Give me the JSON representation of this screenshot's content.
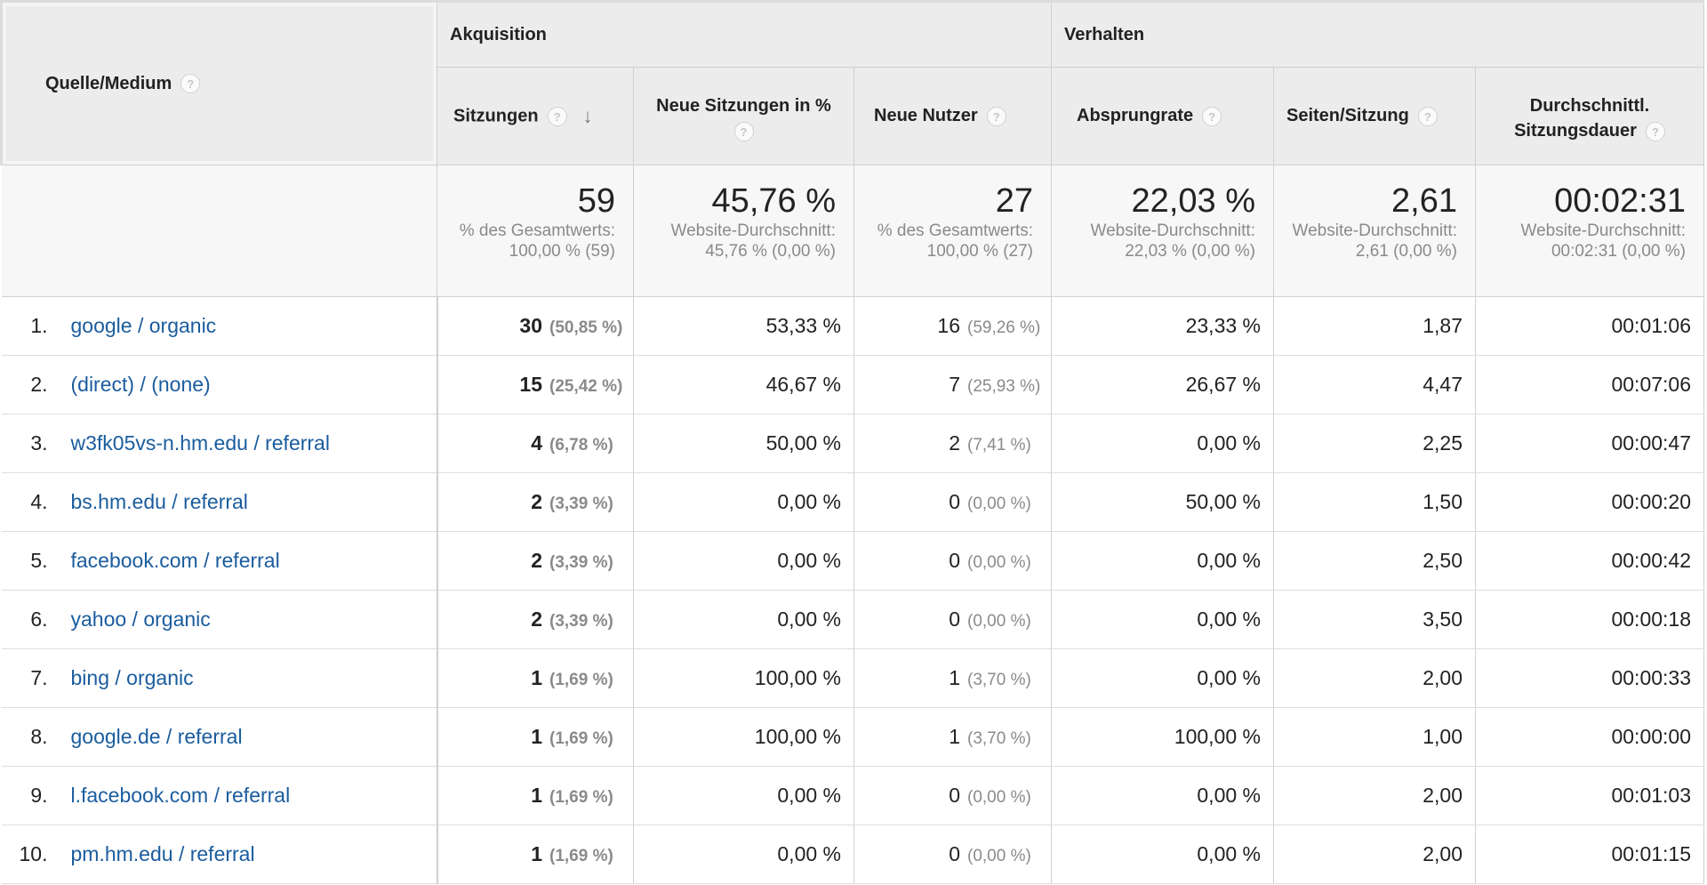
{
  "header": {
    "source_label": "Quelle/Medium",
    "group_acquisition": "Akquisition",
    "group_behavior": "Verhalten",
    "columns": {
      "sessions": "Sitzungen",
      "new_sessions_pct": "Neue Sitzungen in %",
      "new_users": "Neue Nutzer",
      "bounce_rate": "Absprungrate",
      "pages_per_session": "Seiten/Sitzung",
      "avg_duration_line1": "Durchschnittl.",
      "avg_duration_line2": "Sitzungsdauer"
    },
    "help_glyph": "?",
    "sort_glyph": "↓"
  },
  "totals": {
    "sessions": {
      "value": "59",
      "sub": "% des Gesamtwerts: 100,00 % (59)"
    },
    "new_sessions_pct": {
      "value": "45,76 %",
      "sub": "Website-Durchschnitt: 45,76 % (0,00 %)"
    },
    "new_users": {
      "value": "27",
      "sub": "% des Gesamtwerts: 100,00 % (27)"
    },
    "bounce_rate": {
      "value": "22,03 %",
      "sub": "Website-Durchschnitt: 22,03 % (0,00 %)"
    },
    "pages_per_session": {
      "value": "2,61",
      "sub": "Website-Durchschnitt: 2,61 (0,00 %)"
    },
    "avg_duration": {
      "value": "00:02:31",
      "sub": "Website-Durchschnitt: 00:02:31 (0,00 %)"
    }
  },
  "rows": [
    {
      "idx": "1.",
      "source": "google / organic",
      "sessions": "30",
      "sessions_pct": "(50,85 %)",
      "new_sessions_pct": "53,33 %",
      "new_users": "16",
      "new_users_pct": "(59,26 %)",
      "bounce_rate": "23,33 %",
      "pages_per_session": "1,87",
      "avg_duration": "00:01:06"
    },
    {
      "idx": "2.",
      "source": "(direct) / (none)",
      "sessions": "15",
      "sessions_pct": "(25,42 %)",
      "new_sessions_pct": "46,67 %",
      "new_users": "7",
      "new_users_pct": "(25,93 %)",
      "bounce_rate": "26,67 %",
      "pages_per_session": "4,47",
      "avg_duration": "00:07:06"
    },
    {
      "idx": "3.",
      "source": "w3fk05vs-n.hm.edu / referral",
      "sessions": "4",
      "sessions_pct": "(6,78 %)",
      "new_sessions_pct": "50,00 %",
      "new_users": "2",
      "new_users_pct": "(7,41 %)",
      "bounce_rate": "0,00 %",
      "pages_per_session": "2,25",
      "avg_duration": "00:00:47"
    },
    {
      "idx": "4.",
      "source": "bs.hm.edu / referral",
      "sessions": "2",
      "sessions_pct": "(3,39 %)",
      "new_sessions_pct": "0,00 %",
      "new_users": "0",
      "new_users_pct": "(0,00 %)",
      "bounce_rate": "50,00 %",
      "pages_per_session": "1,50",
      "avg_duration": "00:00:20"
    },
    {
      "idx": "5.",
      "source": "facebook.com / referral",
      "sessions": "2",
      "sessions_pct": "(3,39 %)",
      "new_sessions_pct": "0,00 %",
      "new_users": "0",
      "new_users_pct": "(0,00 %)",
      "bounce_rate": "0,00 %",
      "pages_per_session": "2,50",
      "avg_duration": "00:00:42"
    },
    {
      "idx": "6.",
      "source": "yahoo / organic",
      "sessions": "2",
      "sessions_pct": "(3,39 %)",
      "new_sessions_pct": "0,00 %",
      "new_users": "0",
      "new_users_pct": "(0,00 %)",
      "bounce_rate": "0,00 %",
      "pages_per_session": "3,50",
      "avg_duration": "00:00:18"
    },
    {
      "idx": "7.",
      "source": "bing / organic",
      "sessions": "1",
      "sessions_pct": "(1,69 %)",
      "new_sessions_pct": "100,00 %",
      "new_users": "1",
      "new_users_pct": "(3,70 %)",
      "bounce_rate": "0,00 %",
      "pages_per_session": "2,00",
      "avg_duration": "00:00:33"
    },
    {
      "idx": "8.",
      "source": "google.de / referral",
      "sessions": "1",
      "sessions_pct": "(1,69 %)",
      "new_sessions_pct": "100,00 %",
      "new_users": "1",
      "new_users_pct": "(3,70 %)",
      "bounce_rate": "100,00 %",
      "pages_per_session": "1,00",
      "avg_duration": "00:00:00"
    },
    {
      "idx": "9.",
      "source": "l.facebook.com / referral",
      "sessions": "1",
      "sessions_pct": "(1,69 %)",
      "new_sessions_pct": "0,00 %",
      "new_users": "0",
      "new_users_pct": "(0,00 %)",
      "bounce_rate": "0,00 %",
      "pages_per_session": "2,00",
      "avg_duration": "00:01:03"
    },
    {
      "idx": "10.",
      "source": "pm.hm.edu / referral",
      "sessions": "1",
      "sessions_pct": "(1,69 %)",
      "new_sessions_pct": "0,00 %",
      "new_users": "0",
      "new_users_pct": "(0,00 %)",
      "bounce_rate": "0,00 %",
      "pages_per_session": "2,00",
      "avg_duration": "00:01:15"
    }
  ],
  "colors": {
    "link": "#1a5c9e",
    "header_bg": "#ececec",
    "totals_bg": "#f7f7f7",
    "muted_text": "#8a8a8a"
  }
}
